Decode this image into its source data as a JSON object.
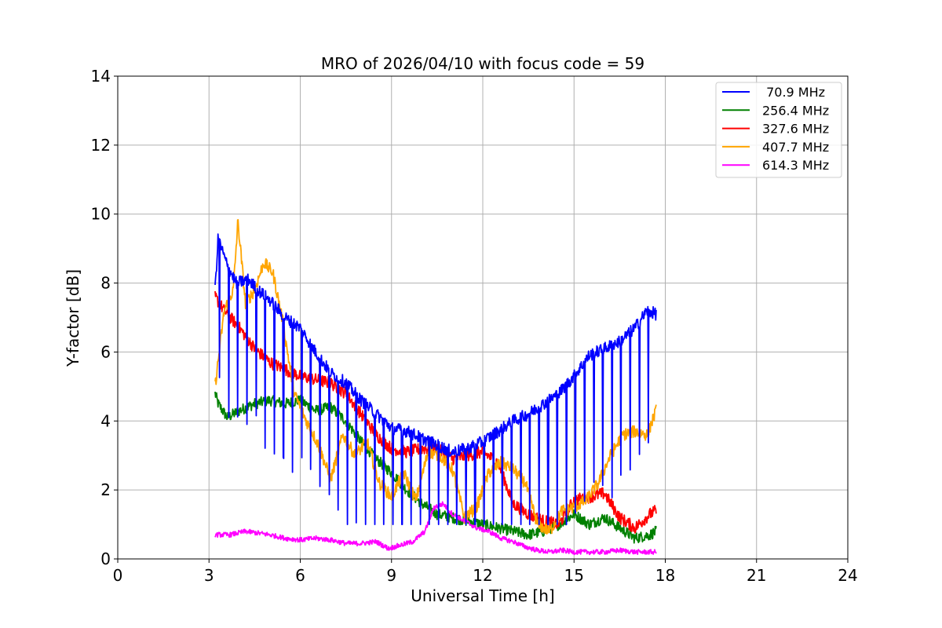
{
  "chart_data": {
    "type": "line",
    "title": "MRO of 2026/04/10 with focus code = 59",
    "xlabel": "Universal Time [h]",
    "ylabel": "Y-factor [dB]",
    "xlim": [
      0,
      24
    ],
    "ylim": [
      0,
      14
    ],
    "xticks": [
      0,
      3,
      6,
      9,
      12,
      15,
      18,
      21,
      24
    ],
    "yticks": [
      0,
      2,
      4,
      6,
      8,
      10,
      12,
      14
    ],
    "grid": true,
    "legend_position": "top-right",
    "series": [
      {
        "name": " 70.9 MHz",
        "color": "#0000ff",
        "x": [
          3.2,
          3.3,
          3.6,
          3.9,
          4.3,
          4.6,
          5.0,
          5.5,
          6.0,
          6.5,
          7.0,
          7.5,
          8.0,
          8.5,
          9.0,
          9.5,
          10.0,
          10.5,
          11.0,
          11.5,
          12.0,
          12.5,
          13.0,
          13.5,
          14.0,
          14.5,
          15.0,
          15.5,
          16.0,
          16.5,
          17.0,
          17.4,
          17.7
        ],
        "values": [
          7.8,
          9.3,
          8.5,
          8.0,
          8.1,
          7.8,
          7.5,
          7.0,
          6.7,
          6.0,
          5.4,
          5.1,
          4.6,
          4.2,
          3.8,
          3.7,
          3.5,
          3.3,
          3.1,
          3.2,
          3.4,
          3.7,
          4.0,
          4.2,
          4.5,
          4.8,
          5.3,
          5.9,
          6.1,
          6.3,
          6.7,
          7.2,
          7.1
        ],
        "dip_low": 1.0
      },
      {
        "name": "256.4 MHz",
        "color": "#008000",
        "x": [
          3.2,
          3.3,
          3.6,
          4.0,
          4.5,
          5.0,
          5.5,
          6.0,
          6.5,
          7.0,
          7.5,
          8.0,
          8.5,
          9.0,
          9.5,
          10.0,
          10.5,
          11.0,
          11.5,
          12.0,
          12.5,
          13.0,
          13.5,
          14.0,
          14.5,
          15.0,
          15.5,
          16.0,
          16.5,
          17.0,
          17.5,
          17.7
        ],
        "values": [
          4.8,
          4.5,
          4.1,
          4.3,
          4.5,
          4.6,
          4.5,
          4.6,
          4.3,
          4.4,
          4.0,
          3.4,
          2.9,
          2.5,
          2.0,
          1.6,
          1.3,
          1.2,
          1.1,
          1.0,
          0.9,
          0.8,
          0.7,
          0.8,
          1.0,
          1.3,
          1.0,
          1.2,
          0.9,
          0.6,
          0.7,
          0.8
        ]
      },
      {
        "name": "327.6 MHz",
        "color": "#ff0000",
        "x": [
          3.2,
          3.5,
          4.0,
          4.5,
          5.0,
          5.5,
          6.0,
          6.5,
          7.0,
          7.5,
          8.0,
          8.5,
          9.0,
          9.5,
          10.0,
          10.5,
          11.0,
          11.5,
          12.0,
          12.5,
          13.0,
          13.5,
          14.0,
          14.5,
          15.0,
          15.5,
          16.0,
          16.5,
          17.0,
          17.5,
          17.7
        ],
        "values": [
          7.6,
          7.2,
          6.7,
          6.1,
          5.7,
          5.5,
          5.3,
          5.2,
          5.1,
          4.8,
          4.2,
          3.6,
          3.2,
          3.1,
          3.2,
          3.2,
          2.9,
          3.0,
          3.1,
          2.8,
          1.6,
          1.3,
          1.1,
          1.0,
          1.7,
          1.8,
          1.9,
          1.2,
          0.9,
          1.3,
          1.4
        ]
      },
      {
        "name": "407.7 MHz",
        "color": "#ffa500",
        "x": [
          3.2,
          3.5,
          3.8,
          3.95,
          4.2,
          4.5,
          4.8,
          5.1,
          5.4,
          5.8,
          6.2,
          6.6,
          7.0,
          7.4,
          7.8,
          8.2,
          8.6,
          9.0,
          9.4,
          9.8,
          10.2,
          10.6,
          11.0,
          11.4,
          11.8,
          12.2,
          12.6,
          13.0,
          13.4,
          13.8,
          14.2,
          14.6,
          15.0,
          15.4,
          15.8,
          16.2,
          16.6,
          17.0,
          17.4,
          17.7
        ],
        "values": [
          5.0,
          7.2,
          7.8,
          9.8,
          7.4,
          7.8,
          8.6,
          8.3,
          7.0,
          4.8,
          4.0,
          3.3,
          2.3,
          3.6,
          3.0,
          3.4,
          2.2,
          1.8,
          2.5,
          1.7,
          3.1,
          3.0,
          2.6,
          1.2,
          1.5,
          2.5,
          2.8,
          2.6,
          2.2,
          1.0,
          0.8,
          1.4,
          1.5,
          1.7,
          2.2,
          3.0,
          3.6,
          3.7,
          3.6,
          4.3
        ]
      },
      {
        "name": "614.3 MHz",
        "color": "#ff00ff",
        "x": [
          3.2,
          3.7,
          4.2,
          4.6,
          5.0,
          5.5,
          6.0,
          6.5,
          7.0,
          7.5,
          8.0,
          8.5,
          8.9,
          9.3,
          9.7,
          10.1,
          10.4,
          10.7,
          11.0,
          11.4,
          11.8,
          12.2,
          12.6,
          13.0,
          13.4,
          13.8,
          14.2,
          14.6,
          15.0,
          15.5,
          16.0,
          16.5,
          17.0,
          17.4,
          17.7
        ],
        "values": [
          0.7,
          0.7,
          0.8,
          0.75,
          0.7,
          0.6,
          0.55,
          0.6,
          0.55,
          0.45,
          0.45,
          0.5,
          0.3,
          0.4,
          0.5,
          0.8,
          1.5,
          1.6,
          1.3,
          1.1,
          0.9,
          0.8,
          0.6,
          0.5,
          0.35,
          0.25,
          0.2,
          0.25,
          0.2,
          0.2,
          0.2,
          0.25,
          0.2,
          0.2,
          0.2
        ]
      }
    ]
  }
}
